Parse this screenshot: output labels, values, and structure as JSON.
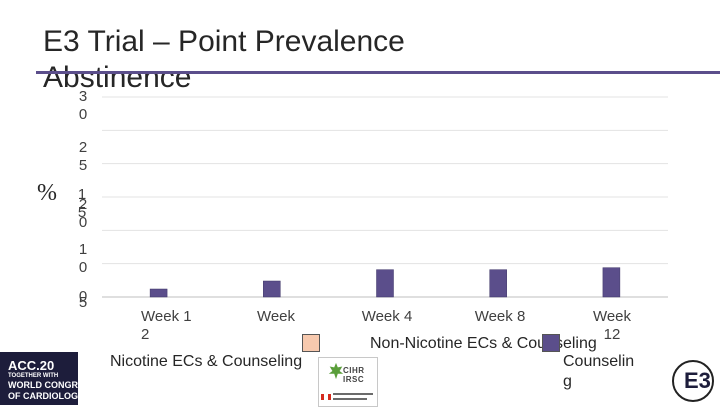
{
  "chart_data": {
    "type": "bar",
    "title": "E3 Trial – Point Prevalence Abstinence",
    "ylabel": "%",
    "ylim": [
      0,
      30
    ],
    "grid": true,
    "yticks": [
      {
        "value": 30,
        "label": "3\n0"
      },
      {
        "value": 25,
        "label": "2\n5"
      },
      {
        "value": 20,
        "label": "2\n0"
      },
      {
        "value": 15,
        "label": "1\n5"
      },
      {
        "value": 10,
        "label": "1\n0"
      },
      {
        "value": 5,
        "label": "5"
      },
      {
        "value": 0,
        "label": "0"
      }
    ],
    "categories": [
      "Week 1\n2",
      "Week",
      "Week 4",
      "Week 8",
      "Week\n12"
    ],
    "series": [
      {
        "name": "Nicotine ECs & Counseling",
        "color": "#e8885a",
        "values": [
          null,
          null,
          null,
          null,
          null
        ]
      },
      {
        "name": "Non-Nicotine ECs & Counseling",
        "color": "#f7c9ae",
        "values": [
          null,
          null,
          null,
          null,
          null
        ]
      },
      {
        "name": "Counselin\ng",
        "color": "#5b4e8b",
        "values": [
          1.2,
          2.4,
          4.1,
          4.1,
          4.4
        ]
      }
    ]
  },
  "logos": {
    "left_line1": "ACC.20",
    "left_line2": "TOGETHER WITH",
    "left_line3": "WORLD CONGRESS",
    "left_line4": "OF CARDIOLOGY",
    "center_text": "CIHR IRSC",
    "right_text": "E3"
  }
}
